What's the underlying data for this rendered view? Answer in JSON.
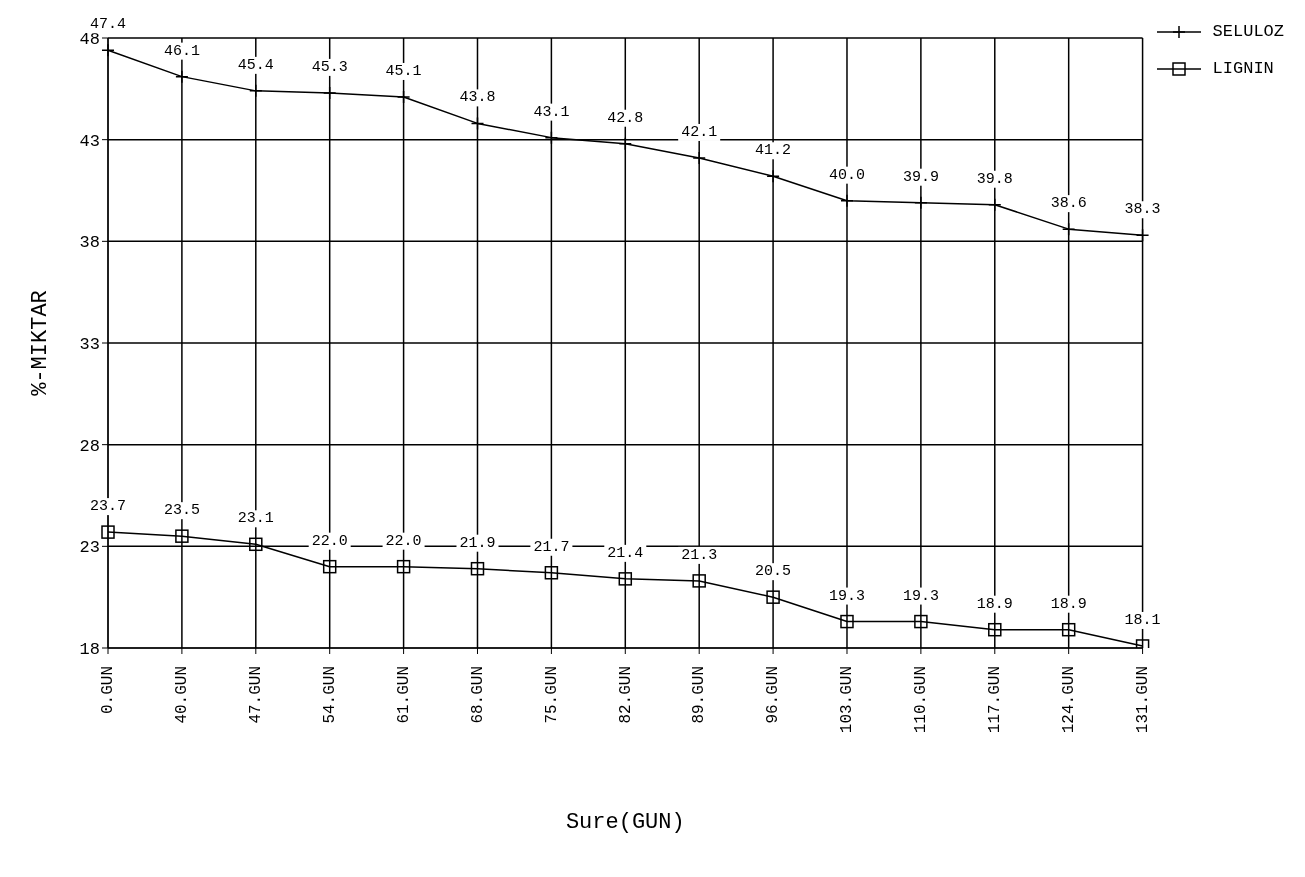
{
  "chart_data": {
    "type": "line",
    "xlabel": "Sure(GUN)",
    "ylabel": "%-MIKTAR",
    "categories": [
      "0.GUN",
      "40.GUN",
      "47.GUN",
      "54.GUN",
      "61.GUN",
      "68.GUN",
      "75.GUN",
      "82.GUN",
      "89.GUN",
      "96.GUN",
      "103.GUN",
      "110.GUN",
      "117.GUN",
      "124.GUN",
      "131.GUN"
    ],
    "series": [
      {
        "name": "SELULOZ",
        "color": "#000000",
        "marker": "cross",
        "values": [
          47.4,
          46.1,
          45.4,
          45.3,
          45.1,
          43.8,
          43.1,
          42.8,
          42.1,
          41.2,
          40.0,
          39.9,
          39.8,
          38.6,
          38.3
        ],
        "value_labels": [
          "47.4",
          "46.1",
          "45.4",
          "45.3",
          "45.1",
          "43.8",
          "43.1",
          "42.8",
          "42.1",
          "41.2",
          "40.0",
          "39.9",
          "39.8",
          "38.6",
          "38.3"
        ]
      },
      {
        "name": "LIGNIN",
        "color": "#000000",
        "marker": "square",
        "values": [
          23.7,
          23.5,
          23.1,
          22.0,
          22.0,
          21.9,
          21.7,
          21.4,
          21.3,
          20.5,
          19.3,
          19.3,
          18.9,
          18.9,
          18.1
        ],
        "value_labels": [
          "23.7",
          "23.5",
          "23.1",
          "22.0",
          "22.0",
          "21.9",
          "21.7",
          "21.4",
          "21.3",
          "20.5",
          "19.3",
          "19.3",
          "18.9",
          "18.9",
          "18.1"
        ]
      }
    ],
    "ylim": [
      18,
      48
    ],
    "yticks": [
      18,
      23,
      28,
      33,
      38,
      43,
      48
    ],
    "grid": true,
    "legend": "top right",
    "line_style": "solid"
  }
}
